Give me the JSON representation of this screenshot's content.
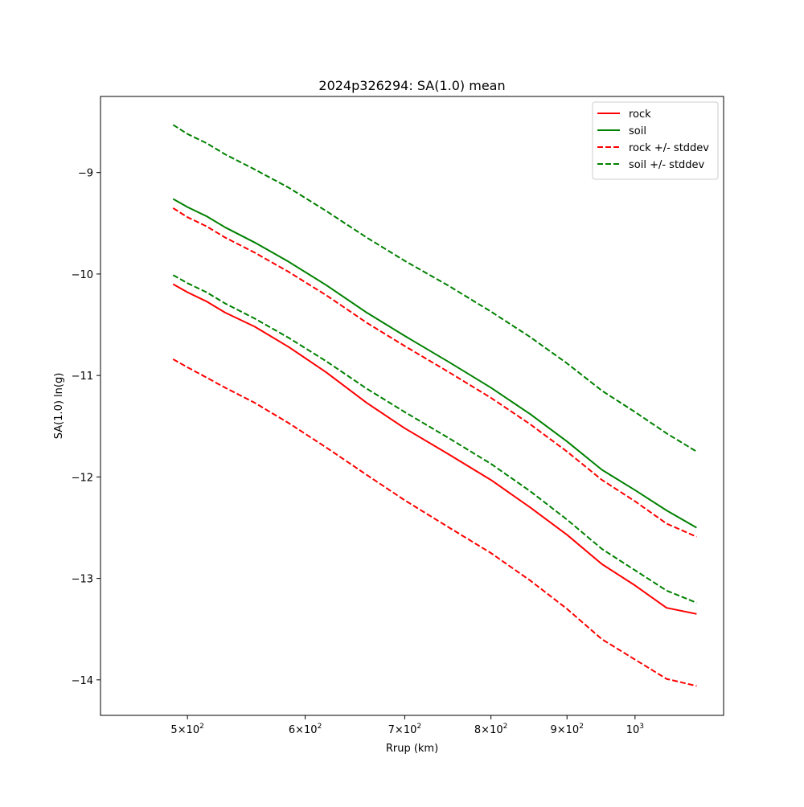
{
  "chart_data": {
    "type": "line",
    "title": "2024p326294: SA(1.0) mean",
    "xlabel": "Rrup (km)",
    "ylabel": "SA(1.0) ln(g)",
    "xscale": "log",
    "xlim": [
      437,
      1147
    ],
    "ylim": [
      -14.35,
      -8.25
    ],
    "grid": false,
    "legend_position": "top-right",
    "x_ticks": [
      {
        "value": 500,
        "base": "5",
        "exp": "2"
      },
      {
        "value": 600,
        "base": "6",
        "exp": "2"
      },
      {
        "value": 700,
        "base": "7",
        "exp": "2"
      },
      {
        "value": 800,
        "base": "8",
        "exp": "2"
      },
      {
        "value": 900,
        "base": "9",
        "exp": "2"
      },
      {
        "value": 1000,
        "base": "",
        "exp": "3"
      }
    ],
    "y_ticks": [
      {
        "value": -9,
        "label": "−9"
      },
      {
        "value": -10,
        "label": "−10"
      },
      {
        "value": -11,
        "label": "−11"
      },
      {
        "value": -12,
        "label": "−12"
      },
      {
        "value": -13,
        "label": "−13"
      },
      {
        "value": -14,
        "label": "−14"
      }
    ],
    "series": [
      {
        "name": "rock",
        "legend": true,
        "color": "#ff0000",
        "dash": false,
        "x": [
          489,
          500,
          515,
          530,
          555,
          585,
          620,
          660,
          700,
          750,
          800,
          850,
          900,
          950,
          1000,
          1050,
          1100
        ],
        "y": [
          -10.1,
          -10.18,
          -10.27,
          -10.38,
          -10.52,
          -10.72,
          -10.97,
          -11.27,
          -11.52,
          -11.78,
          -12.03,
          -12.3,
          -12.57,
          -12.86,
          -13.07,
          -13.29,
          -13.35
        ]
      },
      {
        "name": "soil",
        "legend": true,
        "color": "#008000",
        "dash": false,
        "x": [
          489,
          500,
          515,
          530,
          555,
          585,
          620,
          660,
          700,
          750,
          800,
          850,
          900,
          950,
          1000,
          1050,
          1100
        ],
        "y": [
          -9.26,
          -9.34,
          -9.43,
          -9.54,
          -9.69,
          -9.88,
          -10.11,
          -10.38,
          -10.61,
          -10.87,
          -11.12,
          -11.38,
          -11.65,
          -11.93,
          -12.13,
          -12.33,
          -12.5
        ]
      },
      {
        "name": "rock +/- stddev",
        "legend": true,
        "color": "#ff0000",
        "dash": true,
        "x": [
          489,
          500,
          515,
          530,
          555,
          585,
          620,
          660,
          700,
          750,
          800,
          850,
          900,
          950,
          1000,
          1050,
          1100
        ],
        "y": [
          -9.35,
          -9.44,
          -9.53,
          -9.64,
          -9.79,
          -9.98,
          -10.21,
          -10.48,
          -10.71,
          -10.97,
          -11.22,
          -11.48,
          -11.75,
          -12.03,
          -12.24,
          -12.46,
          -12.59
        ]
      },
      {
        "name": "soil +/- stddev",
        "legend": true,
        "color": "#008000",
        "dash": true,
        "x": [
          489,
          500,
          515,
          530,
          555,
          585,
          620,
          660,
          700,
          750,
          800,
          850,
          900,
          950,
          1000,
          1050,
          1100
        ],
        "y": [
          -8.53,
          -8.62,
          -8.71,
          -8.82,
          -8.97,
          -9.15,
          -9.38,
          -9.64,
          -9.87,
          -10.12,
          -10.37,
          -10.62,
          -10.88,
          -11.15,
          -11.36,
          -11.57,
          -11.75
        ]
      },
      {
        "name": "",
        "legend": false,
        "color": "#ff0000",
        "dash": true,
        "x": [
          489,
          500,
          515,
          530,
          555,
          585,
          620,
          660,
          700,
          750,
          800,
          850,
          900,
          950,
          1000,
          1050,
          1100
        ],
        "y": [
          -10.84,
          -10.92,
          -11.02,
          -11.12,
          -11.27,
          -11.47,
          -11.71,
          -11.98,
          -12.23,
          -12.5,
          -12.75,
          -13.02,
          -13.3,
          -13.6,
          -13.8,
          -13.99,
          -14.06
        ]
      },
      {
        "name": "",
        "legend": false,
        "color": "#008000",
        "dash": true,
        "x": [
          489,
          500,
          515,
          530,
          555,
          585,
          620,
          660,
          700,
          750,
          800,
          850,
          900,
          950,
          1000,
          1050,
          1100
        ],
        "y": [
          -10.01,
          -10.09,
          -10.18,
          -10.29,
          -10.44,
          -10.63,
          -10.86,
          -11.13,
          -11.36,
          -11.62,
          -11.87,
          -12.14,
          -12.42,
          -12.71,
          -12.92,
          -13.12,
          -13.24
        ]
      }
    ]
  }
}
